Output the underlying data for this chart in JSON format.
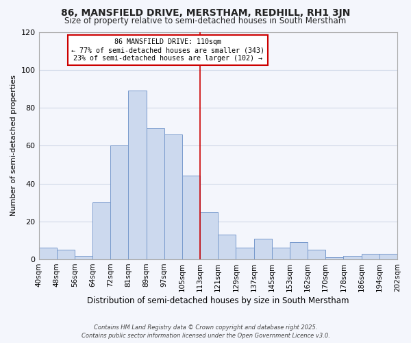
{
  "title": "86, MANSFIELD DRIVE, MERSTHAM, REDHILL, RH1 3JN",
  "subtitle": "Size of property relative to semi-detached houses in South Merstham",
  "xlabel": "Distribution of semi-detached houses by size in South Merstham",
  "ylabel": "Number of semi-detached properties",
  "bar_color": "#ccd9ee",
  "bar_edge_color": "#7799cc",
  "background_color": "#f4f6fc",
  "plot_bg_color": "#f4f6fc",
  "grid_color": "#d0d8e8",
  "bin_labels": [
    "40sqm",
    "48sqm",
    "56sqm",
    "64sqm",
    "72sqm",
    "81sqm",
    "89sqm",
    "97sqm",
    "105sqm",
    "113sqm",
    "121sqm",
    "129sqm",
    "137sqm",
    "145sqm",
    "153sqm",
    "162sqm",
    "170sqm",
    "178sqm",
    "186sqm",
    "194sqm",
    "202sqm"
  ],
  "bin_edges": [
    0,
    1,
    2,
    3,
    4,
    5,
    6,
    7,
    8,
    9,
    10,
    11,
    12,
    13,
    14,
    15,
    16,
    17,
    18,
    19,
    20
  ],
  "bar_heights": [
    6,
    5,
    2,
    30,
    60,
    89,
    69,
    66,
    44,
    25,
    13,
    6,
    11,
    6,
    9,
    5,
    1,
    2,
    3,
    3
  ],
  "ylim": [
    0,
    120
  ],
  "yticks": [
    0,
    20,
    40,
    60,
    80,
    100,
    120
  ],
  "vline_x": 9.0,
  "vline_color": "#cc0000",
  "annotation_title": "86 MANSFIELD DRIVE: 110sqm",
  "annotation_line1": "← 77% of semi-detached houses are smaller (343)",
  "annotation_line2": "23% of semi-detached houses are larger (102) →",
  "annotation_box_color": "#ffffff",
  "annotation_box_edge": "#cc0000",
  "footnote1": "Contains HM Land Registry data © Crown copyright and database right 2025.",
  "footnote2": "Contains public sector information licensed under the Open Government Licence v3.0."
}
